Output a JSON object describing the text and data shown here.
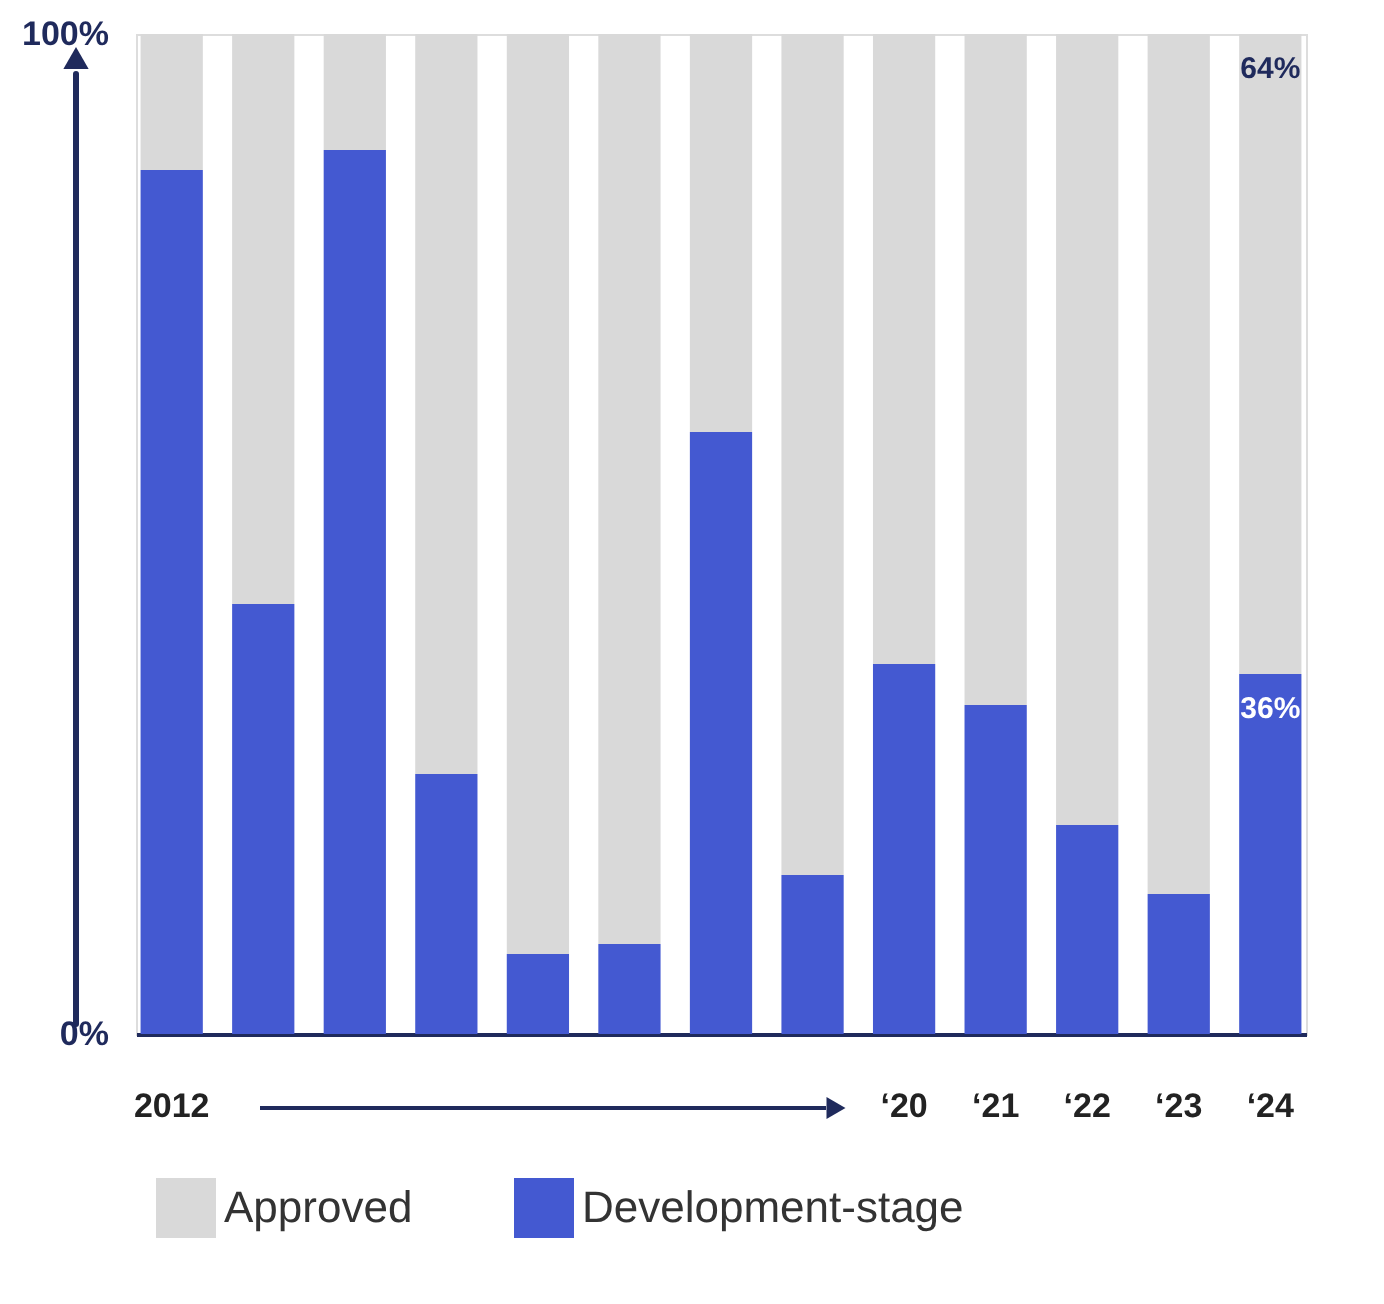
{
  "chart_data": {
    "type": "bar",
    "stacked": true,
    "categories": [
      "2012",
      null,
      null,
      null,
      null,
      null,
      null,
      null,
      "‘20",
      "‘21",
      "‘22",
      "‘23",
      "‘24"
    ],
    "series": [
      {
        "name": "Development-stage",
        "color": "#4459d1",
        "values": [
          86.4,
          43,
          88.4,
          26,
          8,
          9,
          60.2,
          15.9,
          37,
          32.9,
          20.9,
          14,
          36
        ],
        "value_labels": [
          null,
          null,
          null,
          null,
          null,
          null,
          null,
          null,
          null,
          null,
          null,
          null,
          "36%"
        ]
      },
      {
        "name": "Approved",
        "color": "#d9d9d9",
        "values": [
          13.6,
          57,
          11.6,
          74,
          92,
          91,
          39.8,
          84.1,
          63,
          67.1,
          79.1,
          86,
          64
        ],
        "value_labels": [
          null,
          null,
          null,
          null,
          null,
          null,
          null,
          null,
          null,
          null,
          null,
          null,
          "64%"
        ]
      }
    ],
    "ylim": [
      0,
      100
    ],
    "yticks": [
      {
        "value": 0,
        "label": "0%"
      },
      {
        "value": 100,
        "label": "100%"
      }
    ],
    "legend": "bottom"
  }
}
